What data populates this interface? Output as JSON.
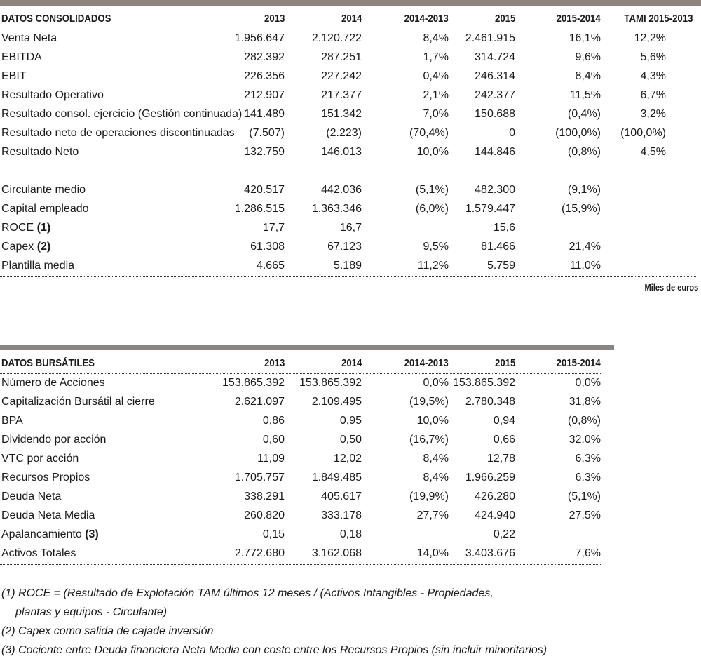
{
  "consolidated": {
    "headers": [
      "DATOS CONSOLIDADOS",
      "2013",
      "2014",
      "2014-2013",
      "2015",
      "2015-2014",
      "TAMI 2015-2013"
    ],
    "rows": [
      {
        "label": "Venta Neta",
        "ref": "",
        "cells": [
          "1.956.647",
          "2.120.722",
          "8,4%",
          "2.461.915",
          "16,1%",
          "12,2%"
        ]
      },
      {
        "label": "EBITDA",
        "ref": "",
        "cells": [
          "282.392",
          "287.251",
          "1,7%",
          "314.724",
          "9,6%",
          "5,6%"
        ]
      },
      {
        "label": "EBIT",
        "ref": "",
        "cells": [
          "226.356",
          "227.242",
          "0,4%",
          "246.314",
          "8,4%",
          "4,3%"
        ]
      },
      {
        "label": "Resultado Operativo",
        "ref": "",
        "cells": [
          "212.907",
          "217.377",
          "2,1%",
          "242.377",
          "11,5%",
          "6,7%"
        ]
      },
      {
        "label": "Resultado consol. ejercicio (Gestión continuada)",
        "ref": "",
        "cells": [
          "141.489",
          "151.342",
          "7,0%",
          "150.688",
          "(0,4%)",
          "3,2%"
        ]
      },
      {
        "label": "Resultado neto de operaciones discontinuadas",
        "ref": "",
        "cells": [
          "(7.507)",
          "(2.223)",
          "(70,4%)",
          "0",
          "(100,0%)",
          "(100,0%)"
        ]
      },
      {
        "label": "Resultado Neto",
        "ref": "",
        "cells": [
          "132.759",
          "146.013",
          "10,0%",
          "144.846",
          "(0,8%)",
          "4,5%"
        ]
      },
      {
        "label": "",
        "ref": "",
        "cells": [
          "",
          "",
          "",
          "",
          "",
          ""
        ]
      },
      {
        "label": "Circulante medio",
        "ref": "",
        "cells": [
          "420.517",
          "442.036",
          "(5,1%)",
          "482.300",
          "(9,1%)",
          ""
        ]
      },
      {
        "label": "Capital empleado",
        "ref": "",
        "cells": [
          "1.286.515",
          "1.363.346",
          "(6,0%)",
          "1.579.447",
          "(15,9%)",
          ""
        ]
      },
      {
        "label": "ROCE ",
        "ref": "(1)",
        "cells": [
          "17,7",
          "16,7",
          "",
          "15,6",
          "",
          ""
        ]
      },
      {
        "label": "Capex ",
        "ref": "(2)",
        "cells": [
          "61.308",
          "67.123",
          "9,5%",
          "81.466",
          "21,4%",
          ""
        ]
      },
      {
        "label": "Plantilla media",
        "ref": "",
        "cells": [
          "4.665",
          "5.189",
          "11,2%",
          "5.759",
          "11,0%",
          ""
        ]
      }
    ],
    "unit_note": "Miles de euros"
  },
  "stock": {
    "headers": [
      "DATOS BURSÁTILES",
      "2013",
      "2014",
      "2014-2013",
      "2015",
      "2015-2014"
    ],
    "rows": [
      {
        "label": "Número de Acciones",
        "ref": "",
        "cells": [
          "153.865.392",
          "153.865.392",
          "0,0%",
          "153.865.392",
          "0,0%"
        ]
      },
      {
        "label": "Capitalización Bursátil al cierre",
        "ref": "",
        "cells": [
          "2.621.097",
          "2.109.495",
          "(19,5%)",
          "2.780.348",
          "31,8%"
        ]
      },
      {
        "label": "BPA",
        "ref": "",
        "cells": [
          "0,86",
          "0,95",
          "10,0%",
          "0,94",
          "(0,8%)"
        ]
      },
      {
        "label": "Dividendo por acción",
        "ref": "",
        "cells": [
          "0,60",
          "0,50",
          "(16,7%)",
          "0,66",
          "32,0%"
        ]
      },
      {
        "label": "VTC por acción",
        "ref": "",
        "cells": [
          "11,09",
          "12,02",
          "8,4%",
          "12,78",
          "6,3%"
        ]
      },
      {
        "label": "Recursos Propios",
        "ref": "",
        "cells": [
          "1.705.757",
          "1.849.485",
          "8,4%",
          "1.966.259",
          "6,3%"
        ]
      },
      {
        "label": "Deuda Neta",
        "ref": "",
        "cells": [
          "338.291",
          "405.617",
          "(19,9%)",
          "426.280",
          "(5,1%)"
        ]
      },
      {
        "label": "Deuda Neta Media",
        "ref": "",
        "cells": [
          "260.820",
          "333.178",
          "27,7%",
          "424.940",
          "27,5%"
        ]
      },
      {
        "label": "Apalancamiento ",
        "ref": "(3)",
        "cells": [
          "0,15",
          "0,18",
          "",
          "0,22",
          ""
        ]
      },
      {
        "label": "Activos Totales",
        "ref": "",
        "cells": [
          "2.772.680",
          "3.162.068",
          "14,0%",
          "3.403.676",
          "7,6%"
        ]
      }
    ]
  },
  "notes": [
    {
      "ref": "(1)",
      "text": " ROCE = (Resultado de Explotación TAM últimos 12 meses / (Activos Intangibles - Propiedades,"
    },
    {
      "ref": "",
      "text": "plantas y equipos - Circulante)"
    },
    {
      "ref": "(2)",
      "text": " Capex como salida de cajade inversión"
    },
    {
      "ref": "(3)",
      "text": " Cociente entre Deuda financiera Neta Media con coste entre los Recursos Propios (sin incluir minoritarios)"
    }
  ]
}
